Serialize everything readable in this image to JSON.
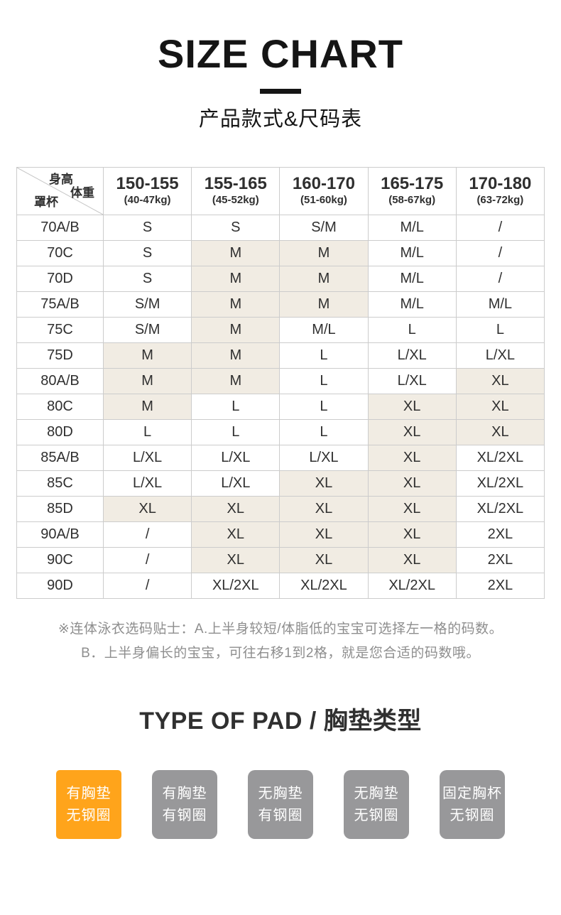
{
  "page": {
    "title": "SIZE CHART",
    "subtitle": "产品款式&尺码表"
  },
  "size_table": {
    "corner": {
      "height_label": "身高",
      "weight_label": "体重",
      "cup_label": "罩杯"
    },
    "columns": [
      {
        "range": "150-155",
        "weight": "(40-47kg)"
      },
      {
        "range": "155-165",
        "weight": "(45-52kg)"
      },
      {
        "range": "160-170",
        "weight": "(51-60kg)"
      },
      {
        "range": "165-175",
        "weight": "(58-67kg)"
      },
      {
        "range": "170-180",
        "weight": "(63-72kg)"
      }
    ],
    "rows": [
      {
        "cup": "70A/B",
        "cells": [
          {
            "text": "S",
            "highlight": false
          },
          {
            "text": "S",
            "highlight": false
          },
          {
            "text": "S/M",
            "highlight": false
          },
          {
            "text": "M/L",
            "highlight": false
          },
          {
            "text": "/",
            "highlight": false
          }
        ]
      },
      {
        "cup": "70C",
        "cells": [
          {
            "text": "S",
            "highlight": false
          },
          {
            "text": "M",
            "highlight": true
          },
          {
            "text": "M",
            "highlight": true
          },
          {
            "text": "M/L",
            "highlight": false
          },
          {
            "text": "/",
            "highlight": false
          }
        ]
      },
      {
        "cup": "70D",
        "cells": [
          {
            "text": "S",
            "highlight": false
          },
          {
            "text": "M",
            "highlight": true
          },
          {
            "text": "M",
            "highlight": true
          },
          {
            "text": "M/L",
            "highlight": false
          },
          {
            "text": "/",
            "highlight": false
          }
        ]
      },
      {
        "cup": "75A/B",
        "cells": [
          {
            "text": "S/M",
            "highlight": false
          },
          {
            "text": "M",
            "highlight": true
          },
          {
            "text": "M",
            "highlight": true
          },
          {
            "text": "M/L",
            "highlight": false
          },
          {
            "text": "M/L",
            "highlight": false
          }
        ]
      },
      {
        "cup": "75C",
        "cells": [
          {
            "text": "S/M",
            "highlight": false
          },
          {
            "text": "M",
            "highlight": true
          },
          {
            "text": "M/L",
            "highlight": false
          },
          {
            "text": "L",
            "highlight": false
          },
          {
            "text": "L",
            "highlight": false
          }
        ]
      },
      {
        "cup": "75D",
        "cells": [
          {
            "text": "M",
            "highlight": true
          },
          {
            "text": "M",
            "highlight": true
          },
          {
            "text": "L",
            "highlight": false
          },
          {
            "text": "L/XL",
            "highlight": false
          },
          {
            "text": "L/XL",
            "highlight": false
          }
        ]
      },
      {
        "cup": "80A/B",
        "cells": [
          {
            "text": "M",
            "highlight": true
          },
          {
            "text": "M",
            "highlight": true
          },
          {
            "text": "L",
            "highlight": false
          },
          {
            "text": "L/XL",
            "highlight": false
          },
          {
            "text": "XL",
            "highlight": true
          }
        ]
      },
      {
        "cup": "80C",
        "cells": [
          {
            "text": "M",
            "highlight": true
          },
          {
            "text": "L",
            "highlight": false
          },
          {
            "text": "L",
            "highlight": false
          },
          {
            "text": "XL",
            "highlight": true
          },
          {
            "text": "XL",
            "highlight": true
          }
        ]
      },
      {
        "cup": "80D",
        "cells": [
          {
            "text": "L",
            "highlight": false
          },
          {
            "text": "L",
            "highlight": false
          },
          {
            "text": "L",
            "highlight": false
          },
          {
            "text": "XL",
            "highlight": true
          },
          {
            "text": "XL",
            "highlight": true
          }
        ]
      },
      {
        "cup": "85A/B",
        "cells": [
          {
            "text": "L/XL",
            "highlight": false
          },
          {
            "text": "L/XL",
            "highlight": false
          },
          {
            "text": "L/XL",
            "highlight": false
          },
          {
            "text": "XL",
            "highlight": true
          },
          {
            "text": "XL/2XL",
            "highlight": false
          }
        ]
      },
      {
        "cup": "85C",
        "cells": [
          {
            "text": "L/XL",
            "highlight": false
          },
          {
            "text": "L/XL",
            "highlight": false
          },
          {
            "text": "XL",
            "highlight": true
          },
          {
            "text": "XL",
            "highlight": true
          },
          {
            "text": "XL/2XL",
            "highlight": false
          }
        ]
      },
      {
        "cup": "85D",
        "cells": [
          {
            "text": "XL",
            "highlight": true
          },
          {
            "text": "XL",
            "highlight": true
          },
          {
            "text": "XL",
            "highlight": true
          },
          {
            "text": "XL",
            "highlight": true
          },
          {
            "text": "XL/2XL",
            "highlight": false
          }
        ]
      },
      {
        "cup": "90A/B",
        "cells": [
          {
            "text": "/",
            "highlight": false
          },
          {
            "text": "XL",
            "highlight": true
          },
          {
            "text": "XL",
            "highlight": true
          },
          {
            "text": "XL",
            "highlight": true
          },
          {
            "text": "2XL",
            "highlight": false
          }
        ]
      },
      {
        "cup": "90C",
        "cells": [
          {
            "text": "/",
            "highlight": false
          },
          {
            "text": "XL",
            "highlight": true
          },
          {
            "text": "XL",
            "highlight": true
          },
          {
            "text": "XL",
            "highlight": true
          },
          {
            "text": "2XL",
            "highlight": false
          }
        ]
      },
      {
        "cup": "90D",
        "cells": [
          {
            "text": "/",
            "highlight": false
          },
          {
            "text": "XL/2XL",
            "highlight": false
          },
          {
            "text": "XL/2XL",
            "highlight": false
          },
          {
            "text": "XL/2XL",
            "highlight": false
          },
          {
            "text": "2XL",
            "highlight": false
          }
        ]
      }
    ]
  },
  "notes": {
    "line1": "※连体泳衣选码贴士：A.上半身较短/体脂低的宝宝可选择左一格的码数。",
    "line2": "B．上半身偏长的宝宝，可往右移1到2格，就是您合适的码数哦。"
  },
  "pad_section": {
    "heading": "TYPE OF PAD / 胸垫类型",
    "options": [
      {
        "line1": "有胸垫",
        "line2": "无钢圈",
        "selected": true
      },
      {
        "line1": "有胸垫",
        "line2": "有钢圈",
        "selected": false
      },
      {
        "line1": "无胸垫",
        "line2": "有钢圈",
        "selected": false
      },
      {
        "line1": "无胸垫",
        "line2": "无钢圈",
        "selected": false
      },
      {
        "line1": "固定胸杯",
        "line2": "无钢圈",
        "selected": false
      }
    ]
  },
  "colors": {
    "accent_orange": "#ffa41b",
    "button_gray": "#98989a",
    "highlight_beige": "#f1ece3",
    "table_border": "#cccccc"
  }
}
